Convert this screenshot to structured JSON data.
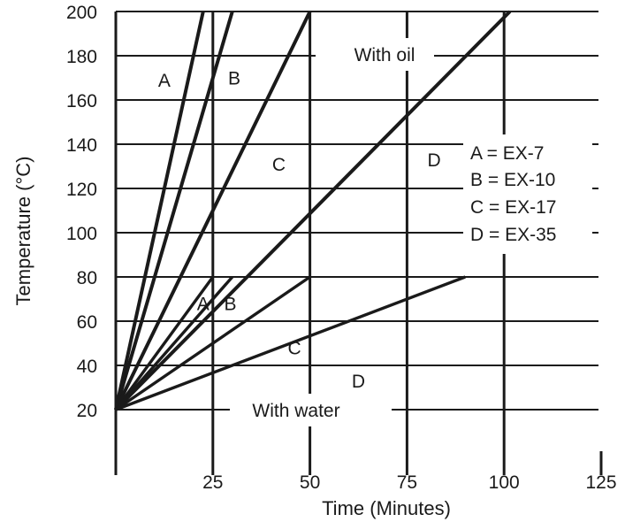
{
  "chart_data": {
    "type": "line",
    "title": "",
    "xlabel": "Time (Minutes)",
    "ylabel": "Temperature (°C)",
    "xlim": [
      0,
      125
    ],
    "ylim": [
      0,
      200
    ],
    "x_ticks": [
      25,
      50,
      75,
      100,
      125
    ],
    "x_tick_labels": [
      "25",
      "50",
      "75",
      "100",
      "125"
    ],
    "y_ticks": [
      20,
      40,
      60,
      80,
      100,
      120,
      140,
      160,
      180,
      200
    ],
    "y_tick_labels": [
      "20",
      "40",
      "60",
      "80",
      "100",
      "120",
      "140",
      "160",
      "180",
      "200"
    ],
    "grid": true,
    "legend": [
      {
        "text": "A = EX-7"
      },
      {
        "text": "B = EX-10"
      },
      {
        "text": "C = EX-17"
      },
      {
        "text": "D = EX-35"
      }
    ],
    "groups": [
      {
        "label": "With oil"
      },
      {
        "label": "With water"
      }
    ],
    "series": [
      {
        "name": "A",
        "group": "With oil",
        "x": [
          0,
          22.5
        ],
        "y": [
          20,
          200
        ]
      },
      {
        "name": "B",
        "group": "With oil",
        "x": [
          0,
          30
        ],
        "y": [
          20,
          200
        ]
      },
      {
        "name": "C",
        "group": "With oil",
        "x": [
          0,
          50
        ],
        "y": [
          20,
          200
        ]
      },
      {
        "name": "D",
        "group": "With oil",
        "x": [
          0,
          101.5
        ],
        "y": [
          20,
          200
        ]
      },
      {
        "name": "A",
        "group": "With water",
        "x": [
          0,
          25
        ],
        "y": [
          20,
          80
        ]
      },
      {
        "name": "B",
        "group": "With water",
        "x": [
          0,
          30
        ],
        "y": [
          20,
          80
        ]
      },
      {
        "name": "C",
        "group": "With water",
        "x": [
          0,
          50
        ],
        "y": [
          20,
          80
        ]
      },
      {
        "name": "D",
        "group": "With water",
        "x": [
          0,
          90
        ],
        "y": [
          20,
          80
        ]
      }
    ],
    "annotations": [
      {
        "text": "A",
        "x": 12.5,
        "y": 166
      },
      {
        "text": "B",
        "x": 30.5,
        "y": 167
      },
      {
        "text": "C",
        "x": 42,
        "y": 128
      },
      {
        "text": "D",
        "x": 82,
        "y": 130
      },
      {
        "text": "A",
        "x": 22.5,
        "y": 65
      },
      {
        "text": "B",
        "x": 29.5,
        "y": 65
      },
      {
        "text": "C",
        "x": 46,
        "y": 45
      },
      {
        "text": "D",
        "x": 62.5,
        "y": 30
      }
    ]
  }
}
